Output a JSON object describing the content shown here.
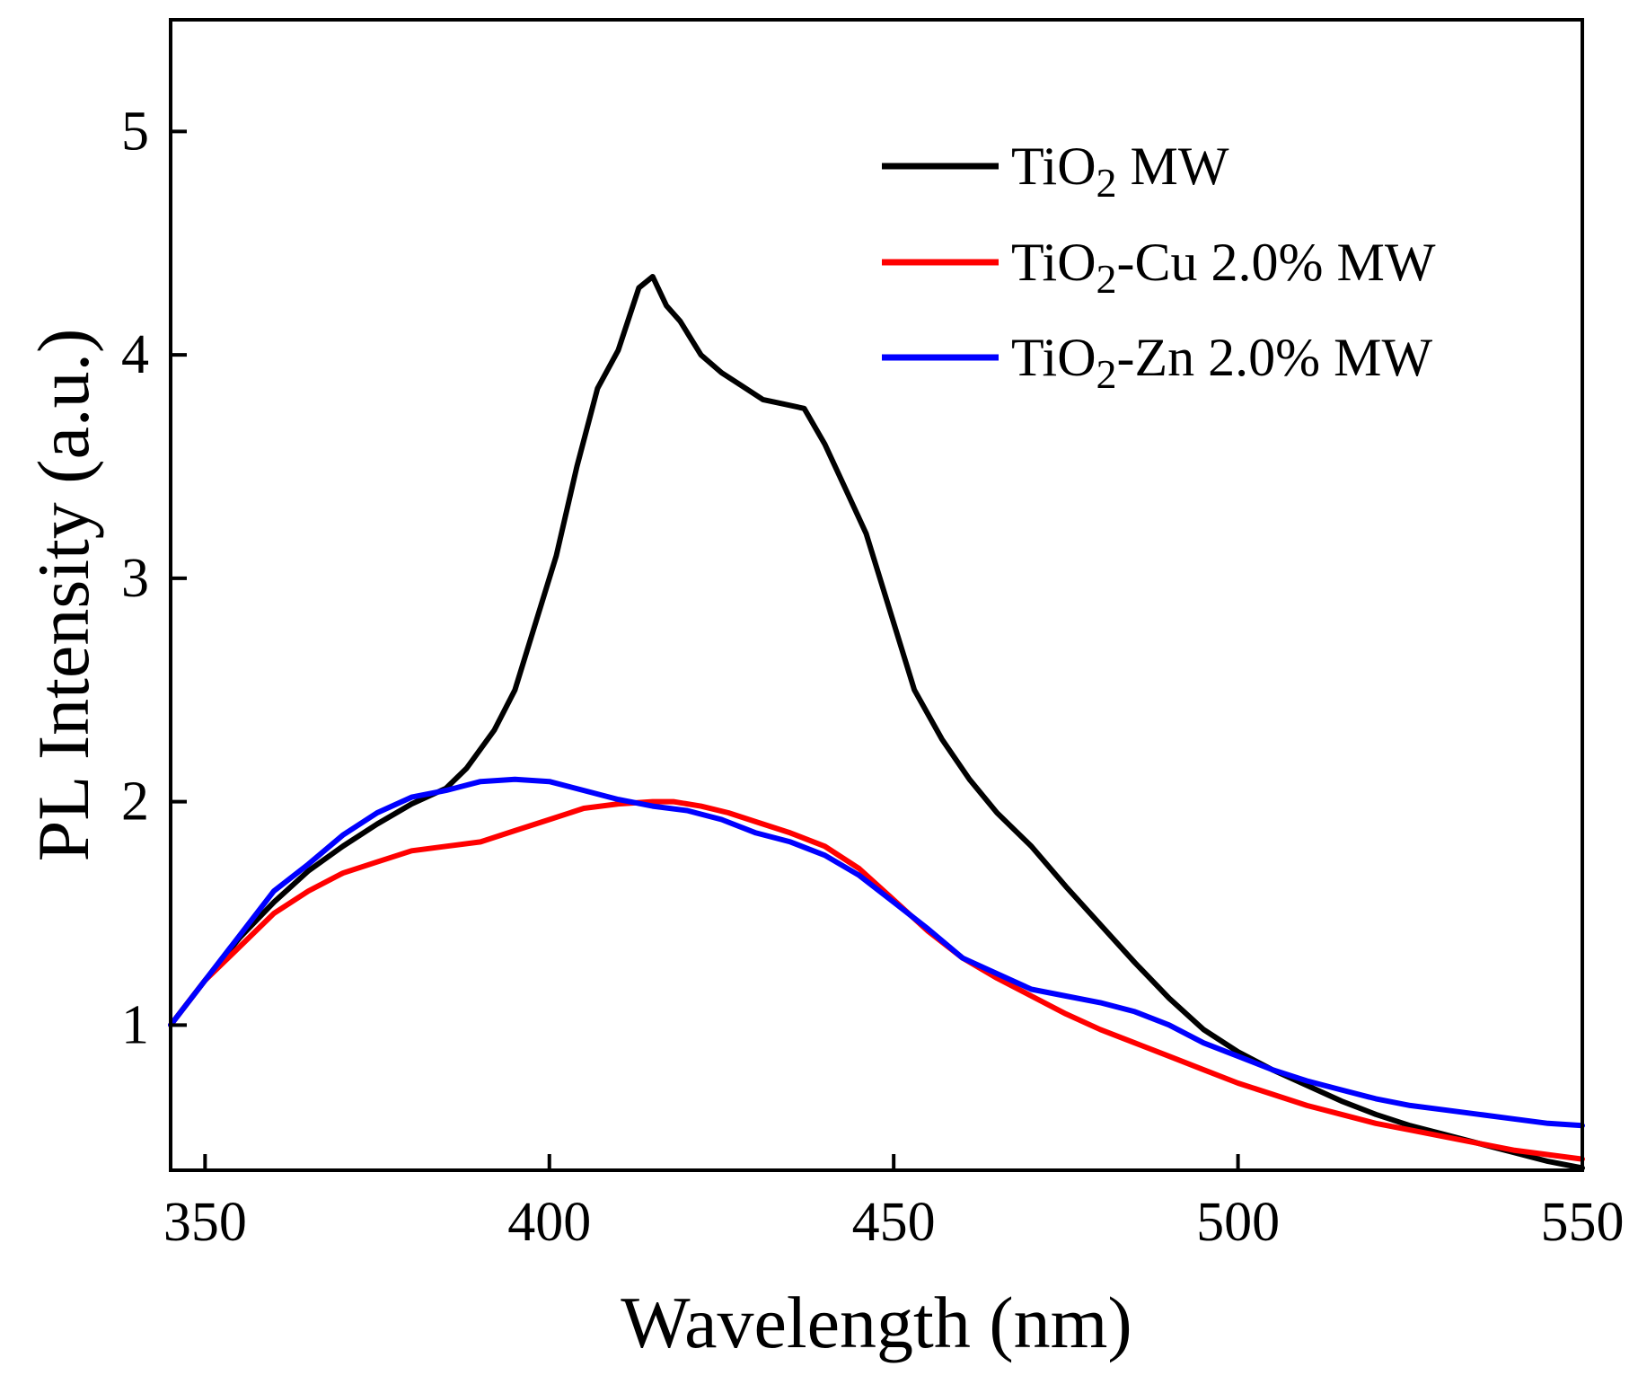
{
  "chart_data": {
    "type": "line",
    "title": "",
    "xlabel": "Wavelength (nm)",
    "ylabel": "PL Intensity (a.u.)",
    "xlim": [
      345,
      550
    ],
    "ylim": [
      0.35,
      5.5
    ],
    "xticks": [
      350,
      400,
      450,
      500,
      550
    ],
    "yticks": [
      1,
      2,
      3,
      4,
      5
    ],
    "grid": false,
    "legend_position": "top-right",
    "series": [
      {
        "name": "TiO2 MW",
        "legend_parts": [
          "TiO",
          "2",
          " MW"
        ],
        "color": "#000000",
        "x": [
          345,
          350,
          355,
          360,
          365,
          370,
          375,
          380,
          385,
          388,
          392,
          395,
          398,
          401,
          404,
          407,
          410,
          413,
          415,
          417,
          419,
          422,
          425,
          428,
          431,
          434,
          437,
          440,
          443,
          446,
          450,
          453,
          457,
          461,
          465,
          470,
          475,
          480,
          485,
          490,
          495,
          500,
          505,
          510,
          515,
          520,
          525,
          530,
          535,
          540,
          545,
          550
        ],
        "y": [
          1.0,
          1.2,
          1.39,
          1.55,
          1.69,
          1.8,
          1.9,
          1.99,
          2.06,
          2.15,
          2.32,
          2.5,
          2.8,
          3.1,
          3.5,
          3.85,
          4.02,
          4.3,
          4.35,
          4.22,
          4.15,
          4.0,
          3.92,
          3.86,
          3.8,
          3.78,
          3.76,
          3.6,
          3.4,
          3.2,
          2.8,
          2.5,
          2.28,
          2.1,
          1.95,
          1.8,
          1.62,
          1.45,
          1.28,
          1.12,
          0.98,
          0.88,
          0.8,
          0.73,
          0.66,
          0.6,
          0.55,
          0.51,
          0.47,
          0.43,
          0.39,
          0.36
        ]
      },
      {
        "name": "TiO2-Cu 2.0% MW",
        "legend_parts": [
          "TiO",
          "2",
          "-Cu 2.0% MW"
        ],
        "color": "#ff0000",
        "x": [
          345,
          350,
          355,
          360,
          365,
          370,
          375,
          380,
          385,
          390,
          395,
          400,
          405,
          410,
          415,
          418,
          422,
          426,
          430,
          435,
          440,
          445,
          450,
          455,
          460,
          465,
          470,
          475,
          480,
          485,
          490,
          495,
          500,
          505,
          510,
          515,
          520,
          525,
          530,
          535,
          540,
          545,
          550
        ],
        "y": [
          1.0,
          1.2,
          1.35,
          1.5,
          1.6,
          1.68,
          1.73,
          1.78,
          1.8,
          1.82,
          1.87,
          1.92,
          1.97,
          1.99,
          2.0,
          2.0,
          1.98,
          1.95,
          1.91,
          1.86,
          1.8,
          1.7,
          1.56,
          1.42,
          1.3,
          1.21,
          1.13,
          1.05,
          0.98,
          0.92,
          0.86,
          0.8,
          0.74,
          0.69,
          0.64,
          0.6,
          0.56,
          0.53,
          0.5,
          0.47,
          0.44,
          0.42,
          0.4
        ]
      },
      {
        "name": "TiO2-Zn 2.0% MW",
        "legend_parts": [
          "TiO",
          "2",
          "-Zn 2.0% MW"
        ],
        "color": "#0000ff",
        "x": [
          345,
          350,
          355,
          360,
          365,
          370,
          375,
          380,
          385,
          390,
          395,
          400,
          405,
          410,
          415,
          420,
          425,
          430,
          435,
          440,
          445,
          450,
          455,
          460,
          465,
          470,
          475,
          480,
          485,
          490,
          495,
          500,
          505,
          510,
          515,
          520,
          525,
          530,
          535,
          540,
          545,
          550
        ],
        "y": [
          1.0,
          1.2,
          1.4,
          1.6,
          1.72,
          1.85,
          1.95,
          2.02,
          2.05,
          2.09,
          2.1,
          2.09,
          2.05,
          2.01,
          1.98,
          1.96,
          1.92,
          1.86,
          1.82,
          1.76,
          1.67,
          1.55,
          1.43,
          1.3,
          1.23,
          1.16,
          1.13,
          1.1,
          1.06,
          1.0,
          0.92,
          0.86,
          0.8,
          0.75,
          0.71,
          0.67,
          0.64,
          0.62,
          0.6,
          0.58,
          0.56,
          0.55
        ]
      }
    ]
  }
}
